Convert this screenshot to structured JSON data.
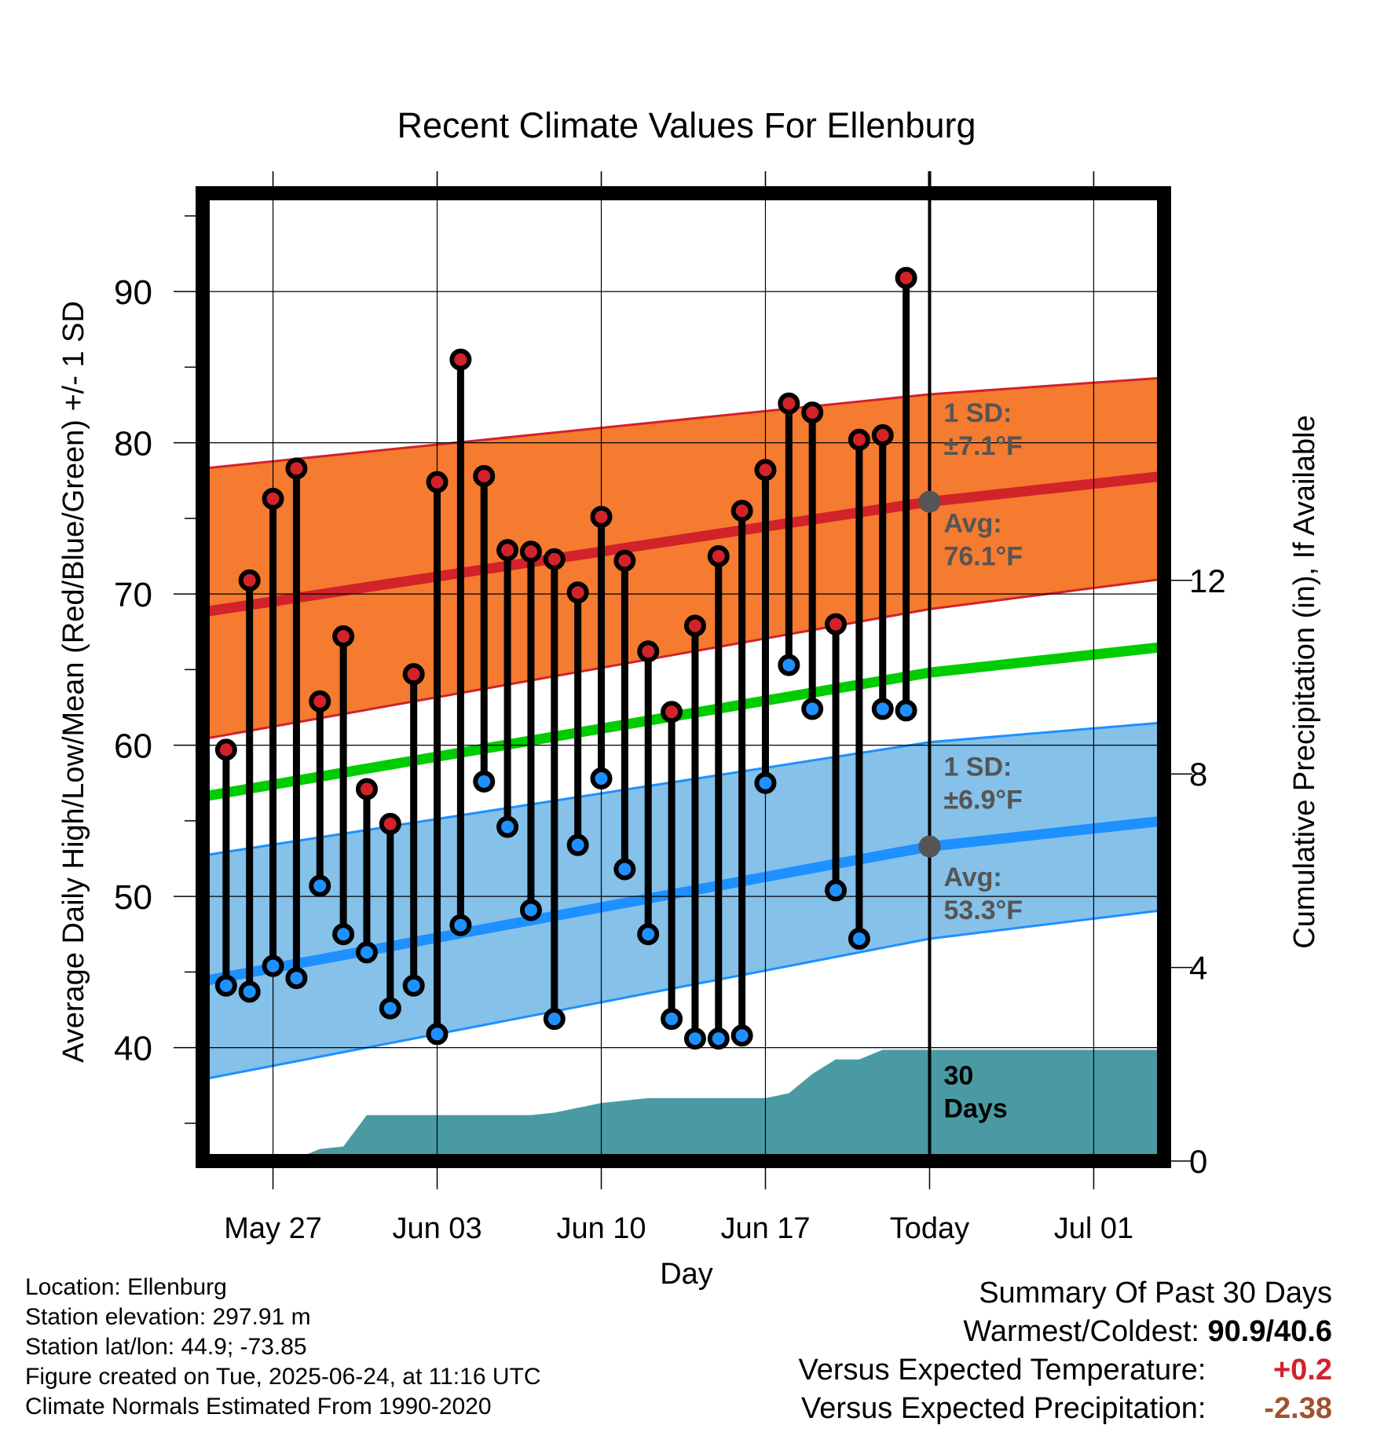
{
  "colors": {
    "high_band": "#f47b30",
    "high_line": "#d2222a",
    "mean_line": "#00cc00",
    "low_band": "#85c1e9",
    "low_band_edge": "#1e90ff",
    "low_line": "#1e90ff",
    "precip": "#4a9aa3",
    "high_marker": "#d2222a",
    "low_marker": "#1e90ff",
    "annotation": "#555555",
    "anomaly_temp": "#d2222a",
    "anomaly_precip": "#a0522d"
  },
  "chart_data": {
    "type": "line",
    "title": "Recent Climate Values For Ellenburg",
    "xlabel": "Day",
    "ylabel": "Average Daily High/Low/Mean (Red/Blue/Green) +/- 1 SD",
    "y2label": "Cumulative Precipitation (in), If Available",
    "ylim": [
      32.5,
      96.5
    ],
    "y2lim": [
      0,
      20
    ],
    "xlim_dates": [
      "2025-05-24",
      "2025-07-04"
    ],
    "yticks": [
      40,
      50,
      60,
      70,
      80,
      90
    ],
    "y2ticks": [
      0,
      4,
      8,
      12
    ],
    "xticks": [
      {
        "date": "2025-05-27",
        "label": "May 27"
      },
      {
        "date": "2025-06-03",
        "label": "Jun 03"
      },
      {
        "date": "2025-06-10",
        "label": "Jun 10"
      },
      {
        "date": "2025-06-17",
        "label": "Jun 17"
      },
      {
        "date": "2025-06-24",
        "label": "Today"
      },
      {
        "date": "2025-07-01",
        "label": "Jul 01"
      }
    ],
    "today": "2025-06-24",
    "grid": true,
    "normals": {
      "dates": [
        "2025-05-24",
        "2025-06-24",
        "2025-07-04"
      ],
      "high_avg": [
        68.8,
        76.1,
        77.8
      ],
      "high_upper": [
        78.3,
        83.2,
        84.3
      ],
      "high_lower": [
        60.4,
        69.0,
        71.0
      ],
      "mean": [
        56.6,
        64.8,
        66.5
      ],
      "low_avg": [
        44.4,
        53.3,
        55.0
      ],
      "low_upper": [
        52.7,
        60.2,
        61.5
      ],
      "low_lower": [
        37.9,
        47.2,
        49.1
      ]
    },
    "daily_dates": [
      "2025-05-25",
      "2025-05-26",
      "2025-05-27",
      "2025-05-28",
      "2025-05-29",
      "2025-05-30",
      "2025-05-31",
      "2025-06-01",
      "2025-06-02",
      "2025-06-03",
      "2025-06-04",
      "2025-06-05",
      "2025-06-06",
      "2025-06-07",
      "2025-06-08",
      "2025-06-09",
      "2025-06-10",
      "2025-06-11",
      "2025-06-12",
      "2025-06-13",
      "2025-06-14",
      "2025-06-15",
      "2025-06-16",
      "2025-06-17",
      "2025-06-18",
      "2025-06-19",
      "2025-06-20",
      "2025-06-21",
      "2025-06-22",
      "2025-06-23"
    ],
    "series": [
      {
        "name": "High",
        "values": [
          59.7,
          70.9,
          76.3,
          78.3,
          62.9,
          67.2,
          57.1,
          54.8,
          64.7,
          77.4,
          85.5,
          77.8,
          72.9,
          72.8,
          72.3,
          70.1,
          75.1,
          72.2,
          66.2,
          62.2,
          67.9,
          72.5,
          75.5,
          78.2,
          82.6,
          82.0,
          68.0,
          80.2,
          80.5,
          90.9
        ]
      },
      {
        "name": "Low",
        "values": [
          44.1,
          43.7,
          45.4,
          44.6,
          50.7,
          47.5,
          46.3,
          42.6,
          44.1,
          40.9,
          48.1,
          57.6,
          54.6,
          49.1,
          41.9,
          53.4,
          57.8,
          51.8,
          47.5,
          41.9,
          40.6,
          40.6,
          40.8,
          57.5,
          65.3,
          62.4,
          50.4,
          47.2,
          62.4,
          62.3
        ]
      },
      {
        "name": "Cumulative Precipitation",
        "dates": [
          "2025-05-24",
          "2025-05-26",
          "2025-05-28",
          "2025-05-29",
          "2025-05-30",
          "2025-05-31",
          "2025-06-07",
          "2025-06-08",
          "2025-06-09",
          "2025-06-10",
          "2025-06-11",
          "2025-06-12",
          "2025-06-17",
          "2025-06-18",
          "2025-06-19",
          "2025-06-20",
          "2025-06-21",
          "2025-06-22",
          "2025-06-23",
          "2025-07-04"
        ],
        "values": [
          0,
          0,
          0.05,
          0.25,
          0.3,
          0.95,
          0.95,
          1.0,
          1.1,
          1.2,
          1.25,
          1.3,
          1.3,
          1.4,
          1.8,
          2.1,
          2.1,
          2.3,
          2.3,
          2.3
        ]
      }
    ],
    "annotations": {
      "high_sd": {
        "line1": "1 SD:",
        "line2": "±7.1°F"
      },
      "high_avg": {
        "line1": "Avg:",
        "line2": "76.1°F"
      },
      "low_sd": {
        "line1": "1 SD:",
        "line2": "±6.9°F"
      },
      "low_avg": {
        "line1": "Avg:",
        "line2": "53.3°F"
      },
      "days": {
        "line1": "30",
        "line2": "Days"
      }
    }
  },
  "footer": {
    "location": "Location: Ellenburg",
    "elevation": "Station elevation: 297.91 m",
    "latlon": "Station lat/lon: 44.9; -73.85",
    "created": "Figure created on Tue, 2025-06-24, at 11:16 UTC",
    "normals": "Climate Normals Estimated From 1990-2020"
  },
  "summary": {
    "title": "Summary Of Past 30 Days",
    "warm_cold_label": "Warmest/Coldest:",
    "warm_cold_value": "90.9/40.6",
    "temp_label": "Versus Expected Temperature:",
    "temp_value": "+0.2",
    "precip_label": "Versus Expected Precipitation:",
    "precip_value": "-2.38"
  }
}
